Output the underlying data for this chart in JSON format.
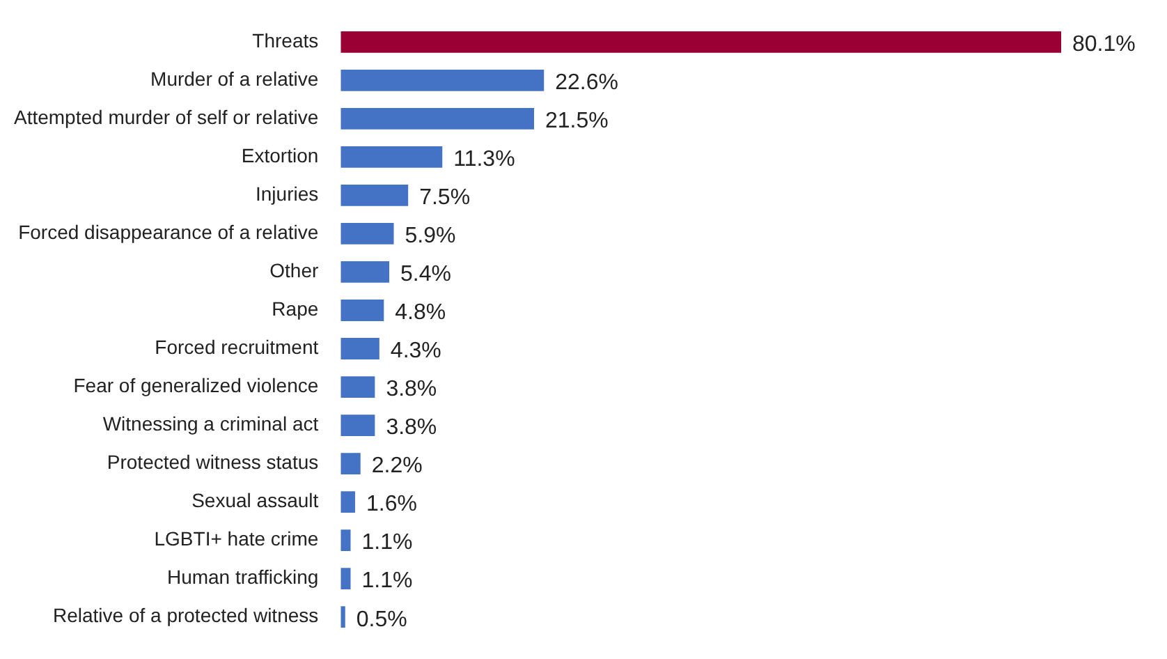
{
  "chart_data": {
    "type": "bar",
    "orientation": "horizontal",
    "categories": [
      "Threats",
      "Murder of a relative",
      "Attempted murder of self or relative",
      "Extortion",
      "Injuries",
      "Forced disappearance of a relative",
      "Other",
      "Rape",
      "Forced recruitment",
      "Fear of generalized violence",
      "Witnessing a criminal act",
      "Protected witness status",
      "Sexual assault",
      "LGBTI+ hate crime",
      "Human trafficking",
      "Relative of a protected witness"
    ],
    "values": [
      80.1,
      22.6,
      21.5,
      11.3,
      7.5,
      5.9,
      5.4,
      4.8,
      4.3,
      3.8,
      3.8,
      2.2,
      1.6,
      1.1,
      1.1,
      0.5
    ],
    "colors": [
      "#9b0034",
      "#4472c4",
      "#4472c4",
      "#4472c4",
      "#4472c4",
      "#4472c4",
      "#4472c4",
      "#4472c4",
      "#4472c4",
      "#4472c4",
      "#4472c4",
      "#4472c4",
      "#4472c4",
      "#4472c4",
      "#4472c4",
      "#4472c4"
    ],
    "value_labels": [
      "80.1%",
      "22.6%",
      "21.5%",
      "11.3%",
      "7.5%",
      "5.9%",
      "5.4%",
      "4.8%",
      "4.3%",
      "3.8%",
      "3.8%",
      "2.2%",
      "1.6%",
      "1.1%",
      "1.1%",
      "0.5%"
    ],
    "tick_labels": "y",
    "legend": false
  }
}
